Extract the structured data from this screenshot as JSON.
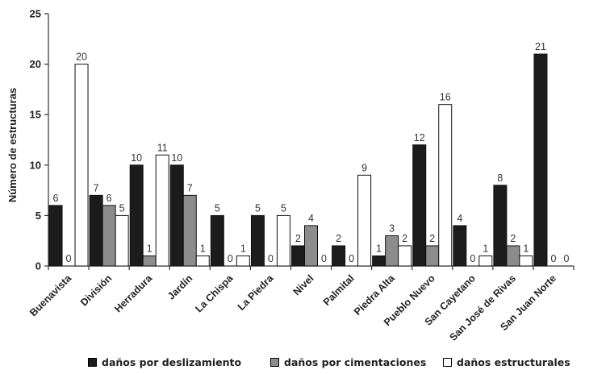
{
  "chart_data": {
    "type": "bar",
    "title": "",
    "xlabel": "",
    "ylabel": "Número de estructuras",
    "ylim": [
      0,
      25
    ],
    "yticks": [
      0,
      5,
      10,
      15,
      20,
      25
    ],
    "grid": false,
    "legend_position": "bottom",
    "categories": [
      "Buenavista",
      "División",
      "Herradura",
      "Jardín",
      "La Chispa",
      "La Piedra",
      "Nivel",
      "Palmital",
      "Piedra Alta",
      "Pueblo Nuevo",
      "San Cayetano",
      "San José de Rivas",
      "San Juan Norte"
    ],
    "series": [
      {
        "name": "daños por deslizamiento",
        "color": "#1c1c1c",
        "values": [
          6,
          7,
          10,
          10,
          5,
          5,
          2,
          2,
          1,
          12,
          4,
          8,
          21
        ]
      },
      {
        "name": "daños por cimentaciones",
        "color": "#8c8c8c",
        "values": [
          0,
          6,
          1,
          7,
          0,
          0,
          4,
          0,
          3,
          2,
          0,
          2,
          0
        ]
      },
      {
        "name": "daños estructurales",
        "color": "#ffffff",
        "values": [
          20,
          5,
          11,
          1,
          1,
          5,
          0,
          9,
          2,
          16,
          1,
          1,
          0
        ]
      }
    ]
  }
}
